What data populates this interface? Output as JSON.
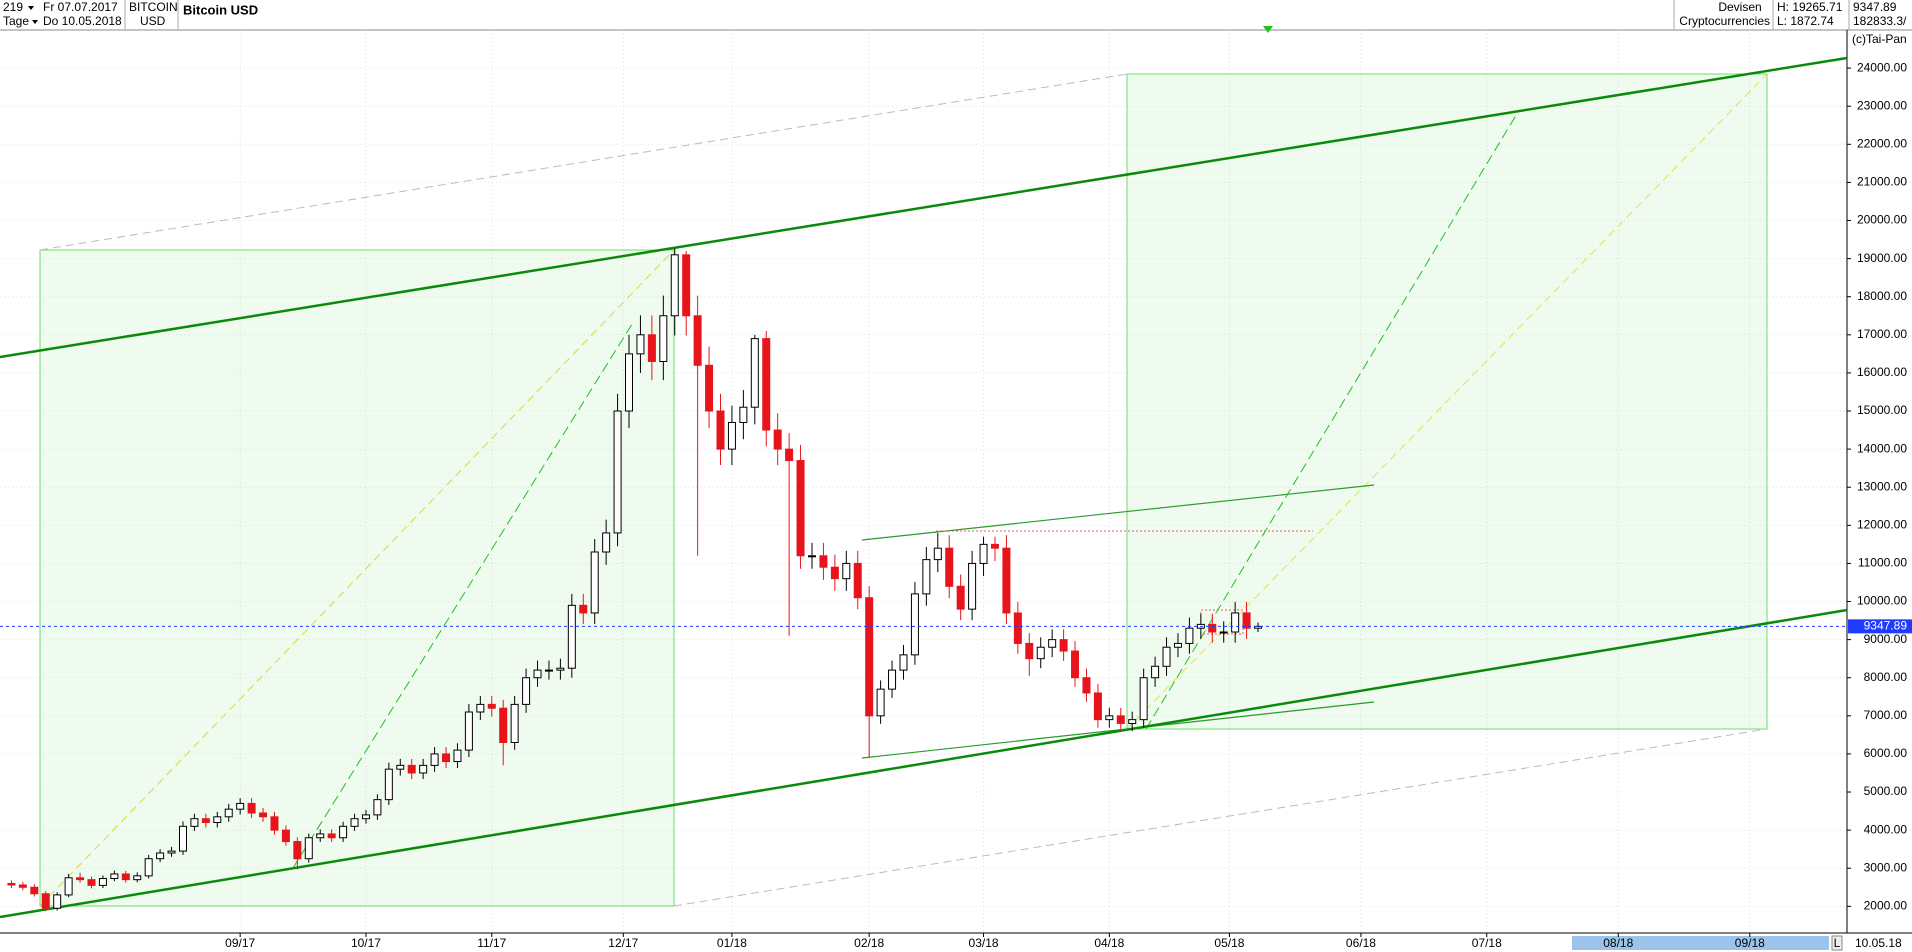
{
  "header": {
    "count": "219",
    "from_date": "Fr 07.07.2017",
    "period": "Tage",
    "to_date": "Do 10.05.2018",
    "symbol": "BITCOIN",
    "currency": "USD",
    "title": "Bitcoin USD",
    "market": "Devisen",
    "group": "Cryptocurrencies",
    "high": "H: 19265.71",
    "low": "L: 1872.74",
    "volume": "182833.3/",
    "copyright": "(c)Tai-Pan"
  },
  "chart_data": {
    "type": "candlestick",
    "x": [
      0,
      2,
      4,
      6,
      8,
      10,
      12,
      14,
      16,
      18,
      20,
      22,
      24,
      26,
      28,
      30,
      32,
      34,
      36,
      38,
      40,
      42,
      44,
      46,
      48,
      50,
      52,
      54,
      56,
      58,
      60,
      62,
      64,
      66,
      68,
      70,
      72,
      74,
      76,
      78,
      80,
      82,
      84,
      86,
      88,
      90,
      92,
      94,
      96,
      98,
      100,
      102,
      104,
      106,
      108,
      110,
      112,
      114,
      116,
      118,
      120,
      122,
      124,
      126,
      128,
      130,
      132,
      134,
      136,
      138,
      140,
      142,
      144,
      146,
      148,
      150,
      152,
      154,
      156,
      158,
      160,
      162,
      164,
      166,
      168,
      170,
      172,
      174,
      176,
      178,
      180,
      182,
      184,
      186,
      188,
      190,
      192,
      194,
      196,
      198,
      200,
      202,
      204,
      206,
      208,
      210,
      212,
      214,
      216,
      218
    ],
    "open": [
      2600,
      2560,
      2500,
      2330,
      1950,
      2300,
      2750,
      2700,
      2550,
      2730,
      2850,
      2700,
      2800,
      3250,
      3400,
      3450,
      4100,
      4300,
      4200,
      4350,
      4550,
      4700,
      4450,
      4350,
      4000,
      3700,
      3250,
      3800,
      3900,
      3800,
      4100,
      4300,
      4400,
      4800,
      5600,
      5700,
      5500,
      5700,
      6000,
      5800,
      6100,
      7100,
      7300,
      7200,
      6300,
      7300,
      8000,
      8200,
      8200,
      8250,
      9900,
      9700,
      11300,
      11800,
      15000,
      16500,
      17000,
      16300,
      17500,
      19100,
      17500,
      16200,
      15000,
      14000,
      14700,
      15100,
      16900,
      14500,
      14000,
      13700,
      11200,
      11200,
      10900,
      10600,
      11000,
      10100,
      7000,
      7700,
      8200,
      8600,
      10200,
      11100,
      11400,
      10400,
      9800,
      11000,
      11500,
      11400,
      9700,
      8900,
      8500,
      8800,
      9000,
      8700,
      8000,
      7600,
      6900,
      7000,
      6800,
      6900,
      8000,
      8300,
      8800,
      8900,
      9300,
      9400,
      9200,
      9200,
      9700,
      9300
    ],
    "high": [
      2680,
      2640,
      2580,
      2400,
      2370,
      2850,
      2880,
      2780,
      2810,
      2940,
      2930,
      2890,
      3350,
      3500,
      3560,
      4230,
      4430,
      4430,
      4480,
      4690,
      4840,
      4840,
      4580,
      4480,
      4120,
      3810,
      3910,
      4020,
      4020,
      4220,
      4430,
      4530,
      4940,
      5770,
      5870,
      5870,
      5870,
      6180,
      6180,
      6280,
      7310,
      7520,
      7520,
      7420,
      7520,
      8240,
      8450,
      8450,
      8500,
      10200,
      10200,
      11640,
      12150,
      15450,
      17000,
      17510,
      17510,
      18030,
      19265.71,
      19200,
      18030,
      16690,
      15450,
      15140,
      15550,
      17000,
      17100,
      14940,
      14420,
      14110,
      11540,
      11540,
      11230,
      11330,
      11330,
      10400,
      7930,
      8450,
      8860,
      10510,
      11430,
      11800,
      11740,
      10710,
      11330,
      11700,
      11700,
      11740,
      9990,
      9170,
      9060,
      9270,
      9270,
      8960,
      8240,
      7830,
      7210,
      7210,
      7110,
      8240,
      8550,
      9060,
      9170,
      9580,
      9680,
      9680,
      9480,
      9990,
      9990,
      9450
    ],
    "low": [
      2480,
      2420,
      2260,
      1872.74,
      1890,
      2240,
      2620,
      2470,
      2480,
      2660,
      2620,
      2630,
      2730,
      3160,
      3300,
      3350,
      3980,
      4070,
      4070,
      4220,
      4410,
      4320,
      4220,
      3880,
      3590,
      2970,
      3150,
      3690,
      3690,
      3690,
      3980,
      4170,
      4270,
      4660,
      5430,
      5340,
      5340,
      5530,
      5630,
      5630,
      5920,
      6890,
      6980,
      5700,
      6110,
      7080,
      7760,
      7950,
      7950,
      8000,
      9410,
      9410,
      10960,
      11450,
      14550,
      16000,
      15810,
      15810,
      16980,
      16980,
      11200,
      14550,
      13580,
      13580,
      14260,
      14650,
      14070,
      13580,
      9100,
      10860,
      10860,
      10570,
      10280,
      10280,
      9800,
      5900,
      6790,
      7470,
      7950,
      8340,
      9890,
      10770,
      10090,
      9510,
      9510,
      10670,
      11060,
      9410,
      8630,
      8050,
      8250,
      8540,
      8440,
      7760,
      7370,
      6690,
      6690,
      6600,
      6600,
      6690,
      7760,
      8050,
      8540,
      8630,
      9020,
      8920,
      8920,
      8920,
      9020,
      9200
    ],
    "close": [
      2560,
      2500,
      2330,
      1950,
      2300,
      2750,
      2700,
      2550,
      2730,
      2850,
      2700,
      2800,
      3250,
      3400,
      3450,
      4100,
      4300,
      4200,
      4350,
      4550,
      4700,
      4450,
      4350,
      4000,
      3700,
      3250,
      3800,
      3900,
      3800,
      4100,
      4300,
      4400,
      4800,
      5600,
      5700,
      5500,
      5700,
      6000,
      5800,
      6100,
      7100,
      7300,
      7200,
      6300,
      7300,
      8000,
      8200,
      8200,
      8250,
      9900,
      9700,
      11300,
      11800,
      15000,
      16500,
      17000,
      16300,
      17500,
      19100,
      17500,
      16200,
      15000,
      14000,
      14700,
      15100,
      16900,
      14500,
      14000,
      13700,
      11200,
      11200,
      10900,
      10600,
      11000,
      10100,
      7000,
      7700,
      8200,
      8600,
      10200,
      11100,
      11400,
      10400,
      9800,
      11000,
      11500,
      11400,
      9700,
      8900,
      8500,
      8800,
      9000,
      8700,
      8000,
      7600,
      6900,
      7000,
      6800,
      6900,
      8000,
      8300,
      8800,
      8900,
      9300,
      9400,
      9200,
      9200,
      9700,
      9300,
      9347.89
    ],
    "up_color": "#ffffff",
    "down_color": "#e8141c",
    "last_color": "#1f3bff",
    "xlim": [
      -2,
      321
    ],
    "xticks": [
      {
        "value": 40,
        "label": "09/17"
      },
      {
        "value": 62,
        "label": "10/17"
      },
      {
        "value": 84,
        "label": "11/17"
      },
      {
        "value": 107,
        "label": "12/17"
      },
      {
        "value": 126,
        "label": "01/18"
      },
      {
        "value": 150,
        "label": "02/18"
      },
      {
        "value": 170,
        "label": "03/18"
      },
      {
        "value": 192,
        "label": "04/18"
      },
      {
        "value": 213,
        "label": "05/18"
      },
      {
        "value": 236,
        "label": "06/18"
      },
      {
        "value": 258,
        "label": "07/18"
      },
      {
        "value": 281,
        "label": "08/18"
      },
      {
        "value": 304,
        "label": "09/18"
      }
    ],
    "ylim": [
      1300,
      25000
    ],
    "yticks": [
      {
        "value": 2000,
        "label": "2000.00"
      },
      {
        "value": 3000,
        "label": "3000.00"
      },
      {
        "value": 4000,
        "label": "4000.00"
      },
      {
        "value": 5000,
        "label": "5000.00"
      },
      {
        "value": 6000,
        "label": "6000.00"
      },
      {
        "value": 7000,
        "label": "7000.00"
      },
      {
        "value": 8000,
        "label": "8000.00"
      },
      {
        "value": 9000,
        "label": "9000.00"
      },
      {
        "value": 10000,
        "label": "10000.00"
      },
      {
        "value": 11000,
        "label": "11000.00"
      },
      {
        "value": 12000,
        "label": "12000.00"
      },
      {
        "value": 13000,
        "label": "13000.00"
      },
      {
        "value": 14000,
        "label": "14000.00"
      },
      {
        "value": 15000,
        "label": "15000.00"
      },
      {
        "value": 16000,
        "label": "16000.00"
      },
      {
        "value": 17000,
        "label": "17000.00"
      },
      {
        "value": 18000,
        "label": "18000.00"
      },
      {
        "value": 19000,
        "label": "19000.00"
      },
      {
        "value": 20000,
        "label": "20000.00"
      },
      {
        "value": 21000,
        "label": "21000.00"
      },
      {
        "value": 22000,
        "label": "22000.00"
      },
      {
        "value": 23000,
        "label": "23000.00"
      },
      {
        "value": 24000,
        "label": "24000.00"
      }
    ],
    "grid": true
  },
  "footer": {
    "scroll_mode": "L",
    "date": "10.05.18"
  }
}
